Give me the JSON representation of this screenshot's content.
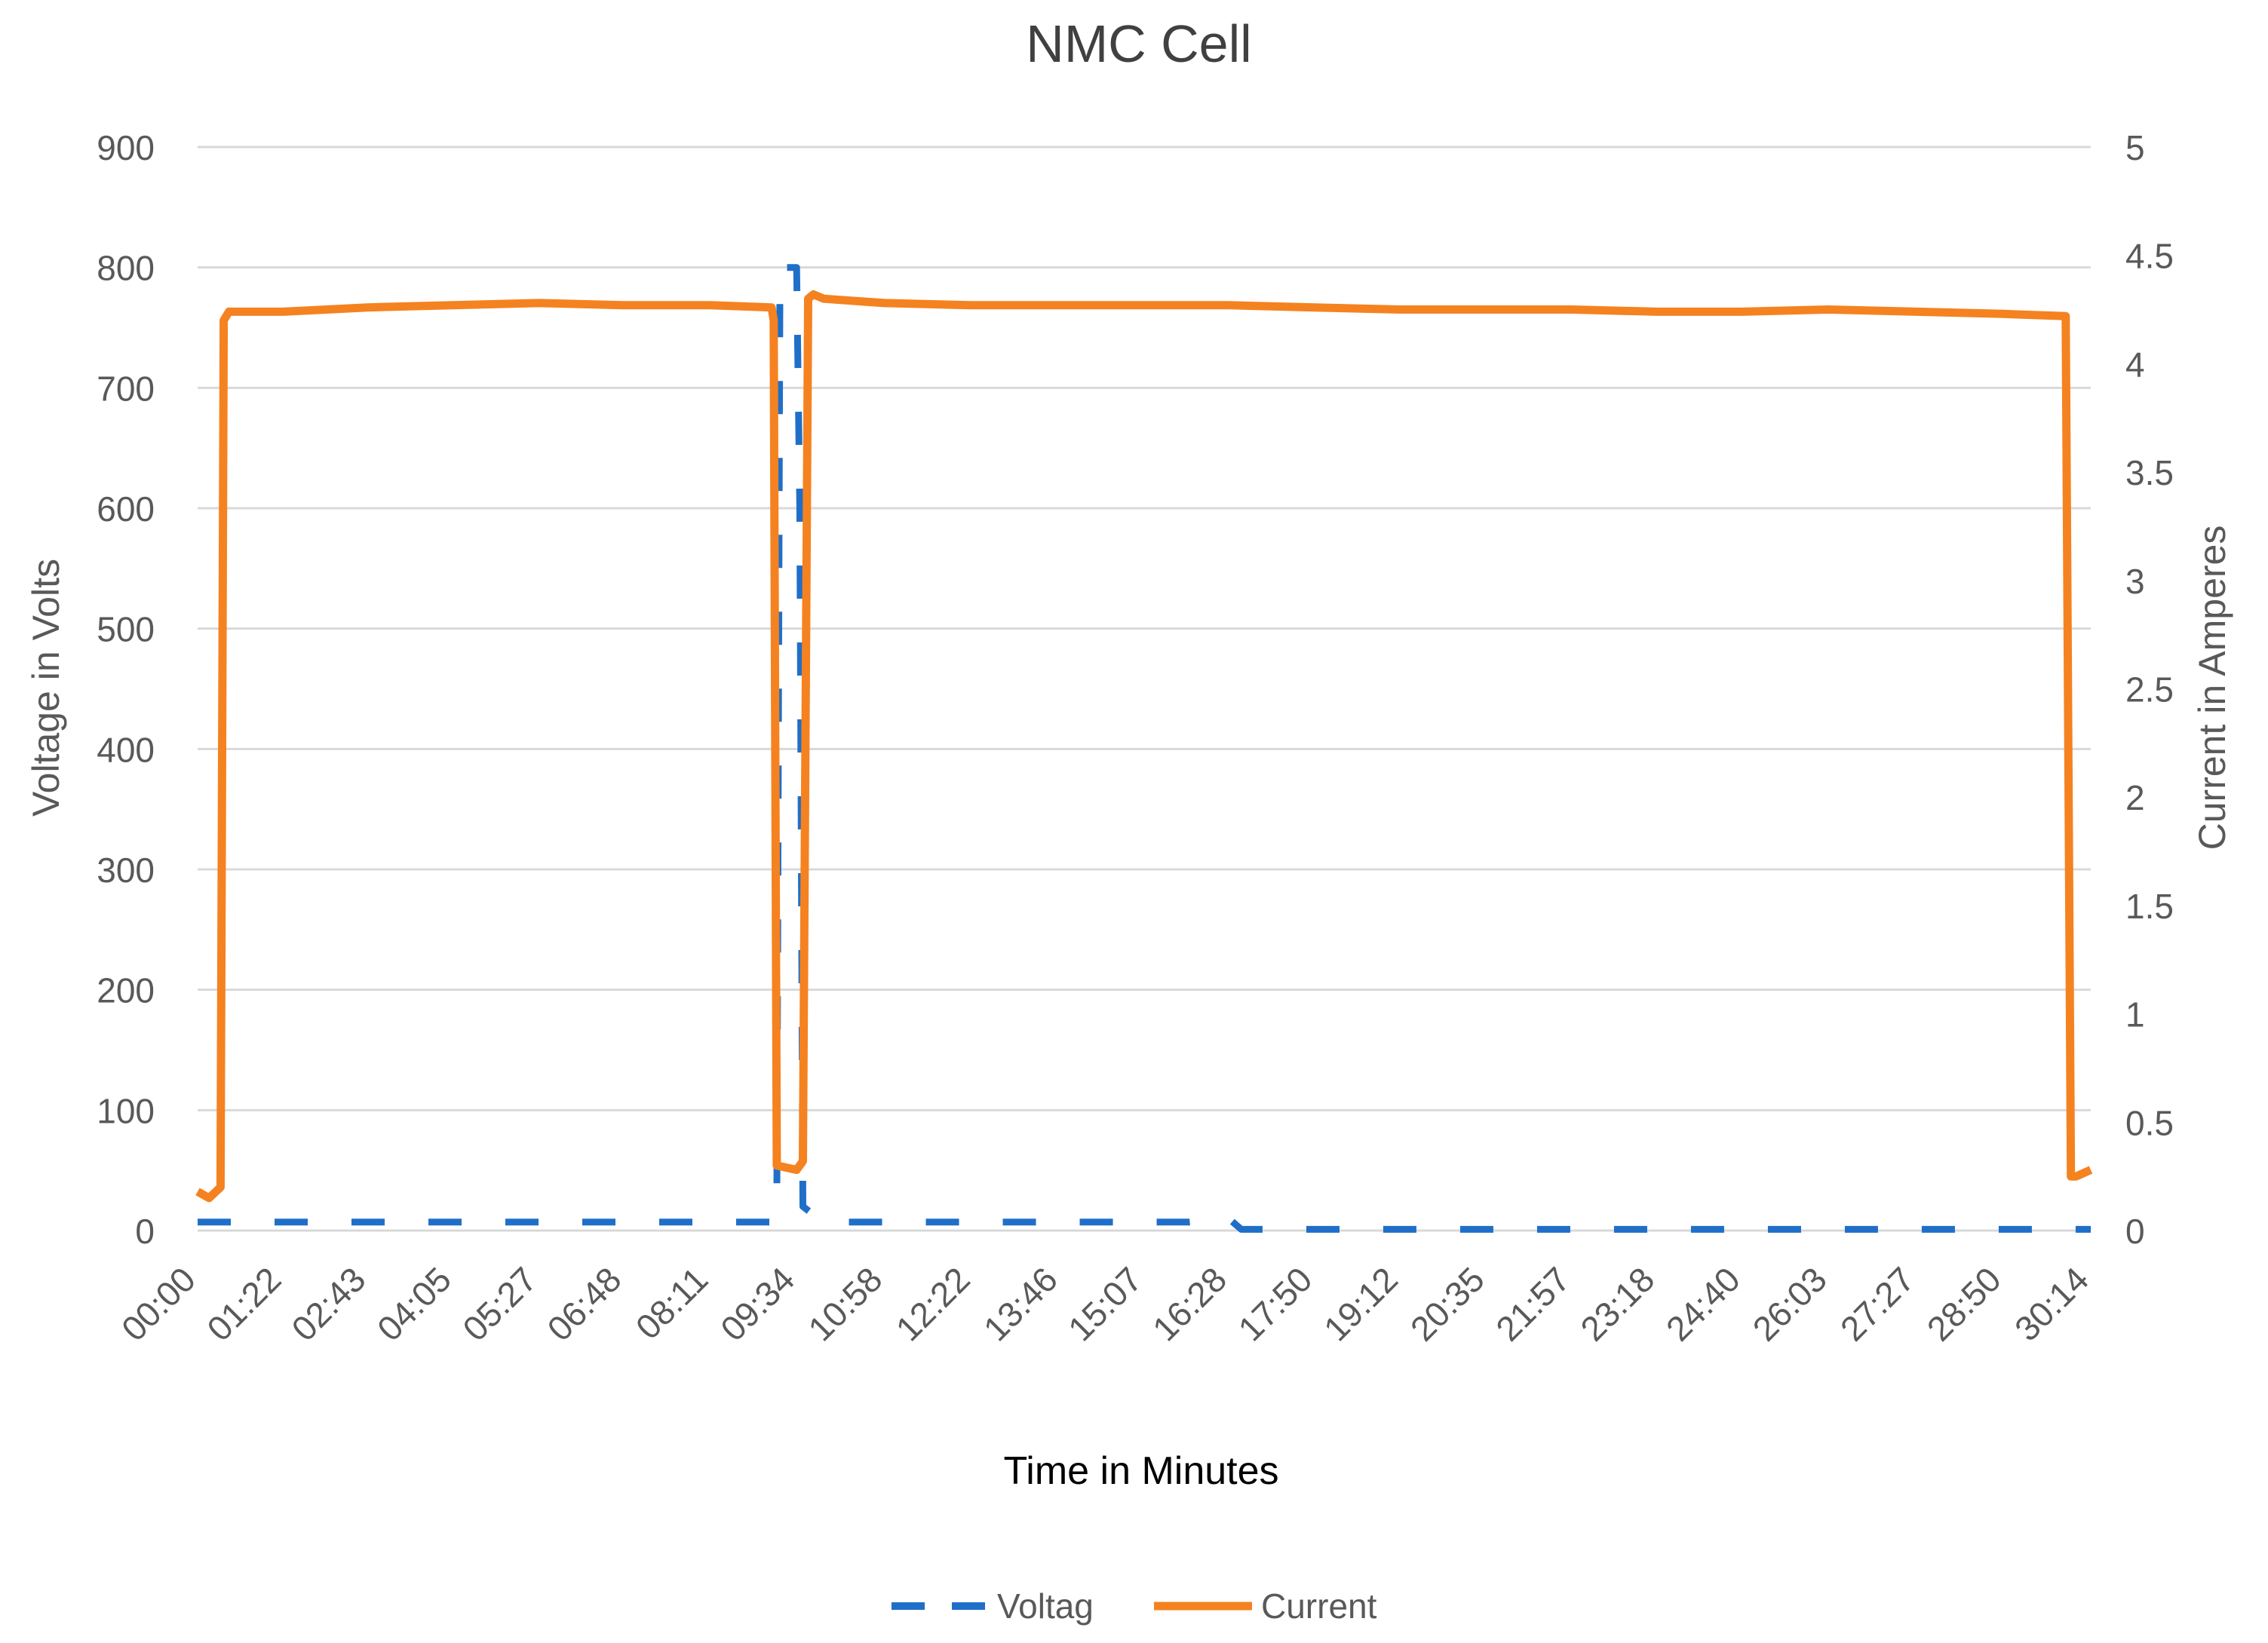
{
  "chart_data": {
    "type": "line",
    "title": "NMC Cell",
    "xlabel": "Time in Minutes",
    "ylabel_left": "Voltage in Volts",
    "ylabel_right": "Current in Amperes",
    "x_ticks": [
      "00:00",
      "01:22",
      "02:43",
      "04:05",
      "05:27",
      "06:48",
      "08:11",
      "09:34",
      "10:58",
      "12:22",
      "13:46",
      "15:07",
      "16:28",
      "17:50",
      "19:12",
      "20:35",
      "21:57",
      "23:18",
      "24:40",
      "26:03",
      "27:27",
      "28:50",
      "30:14"
    ],
    "y_left": {
      "min": 0,
      "max": 900,
      "step": 100,
      "ticks": [
        "0",
        "100",
        "200",
        "300",
        "400",
        "500",
        "600",
        "700",
        "800",
        "900"
      ]
    },
    "y_right": {
      "min": 0,
      "max": 5,
      "step": 0.5,
      "ticks": [
        "0",
        "0.5",
        "1",
        "1.5",
        "2",
        "2.5",
        "3",
        "3.5",
        "4",
        "4.5",
        "5"
      ]
    },
    "grid": true,
    "legend_position": "bottom",
    "series": [
      {
        "name": "Voltag",
        "axis": "left",
        "style": "dashed",
        "color": "#1F6FC9",
        "x": [
          "00:00",
          "09:12",
          "09:15",
          "09:18",
          "09:34",
          "09:37",
          "09:40",
          "09:55",
          "10:00",
          "10:10",
          "15:50",
          "16:28",
          "16:40",
          "30:14"
        ],
        "y": [
          7,
          7,
          15,
          800,
          800,
          600,
          20,
          10,
          7,
          7,
          7,
          10,
          1,
          1
        ]
      },
      {
        "name": "Current",
        "axis": "right",
        "style": "solid",
        "color": "#F58220",
        "x": [
          "00:00",
          "00:11",
          "00:22",
          "00:25",
          "00:30",
          "01:22",
          "02:43",
          "04:05",
          "05:27",
          "06:48",
          "08:11",
          "09:10",
          "09:12",
          "09:15",
          "09:34",
          "09:40",
          "09:45",
          "09:50",
          "10:00",
          "10:58",
          "12:22",
          "13:46",
          "15:07",
          "16:28",
          "17:50",
          "19:12",
          "20:35",
          "21:57",
          "23:18",
          "24:40",
          "26:03",
          "27:27",
          "28:50",
          "29:50",
          "29:55",
          "30:00",
          "30:14"
        ],
        "y": [
          0.18,
          0.15,
          0.2,
          4.2,
          4.24,
          4.24,
          4.26,
          4.27,
          4.28,
          4.27,
          4.27,
          4.26,
          4.2,
          0.3,
          0.28,
          0.32,
          4.3,
          4.32,
          4.3,
          4.28,
          4.27,
          4.27,
          4.27,
          4.27,
          4.26,
          4.25,
          4.25,
          4.25,
          4.24,
          4.24,
          4.25,
          4.24,
          4.23,
          4.22,
          0.25,
          0.25,
          0.28
        ]
      }
    ]
  }
}
